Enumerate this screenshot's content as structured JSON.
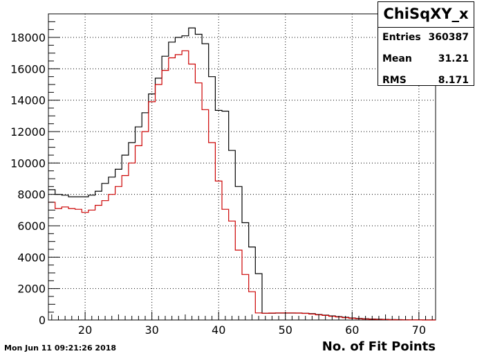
{
  "chart_data": {
    "type": "histogram",
    "title": "ChiSqXY_x",
    "xlabel": "No. of Fit Points",
    "ylabel": "",
    "xlim": [
      14.5,
      72.5
    ],
    "ylim": [
      0,
      19500
    ],
    "x_ticks": [
      20,
      30,
      40,
      50,
      60,
      70
    ],
    "y_ticks": [
      0,
      2000,
      4000,
      6000,
      8000,
      10000,
      12000,
      14000,
      16000,
      18000
    ],
    "grid": true,
    "bin_edges_start": 14.5,
    "bin_width": 1,
    "series": [
      {
        "color": "#000000",
        "values": [
          8300,
          8000,
          7950,
          7850,
          7850,
          7850,
          7950,
          8200,
          8700,
          9100,
          9600,
          10500,
          11300,
          12300,
          13200,
          14400,
          15400,
          16800,
          17700,
          18000,
          18100,
          18600,
          18200,
          17600,
          15500,
          13350,
          13300,
          10800,
          8500,
          6200,
          4650,
          2950,
          430,
          430,
          440,
          440,
          440,
          440,
          430,
          400,
          350,
          310,
          260,
          210,
          170,
          130,
          100,
          80,
          60,
          50,
          40,
          30,
          20,
          15,
          10,
          8,
          5,
          5
        ]
      },
      {
        "color": "#cc0000",
        "values": [
          7500,
          7100,
          7200,
          7100,
          7050,
          6850,
          7000,
          7300,
          7600,
          8000,
          8500,
          9200,
          10000,
          11100,
          12000,
          13900,
          15000,
          15900,
          16700,
          16900,
          17150,
          16300,
          15100,
          13400,
          11300,
          8850,
          7050,
          6300,
          4450,
          2900,
          1800,
          450,
          430,
          440,
          450,
          450,
          450,
          440,
          420,
          380,
          330,
          290,
          240,
          190,
          150,
          110,
          80,
          60,
          45,
          35,
          25,
          18,
          12,
          8,
          5,
          3,
          2,
          2
        ]
      }
    ]
  },
  "stats": {
    "title": "ChiSqXY_x",
    "rows": [
      {
        "label": "Entries",
        "value": "360387"
      },
      {
        "label": "Mean",
        "value": "31.21"
      },
      {
        "label": "RMS",
        "value": "8.171"
      }
    ]
  },
  "datestamp": "Mon Jun 11 09:21:26 2018"
}
